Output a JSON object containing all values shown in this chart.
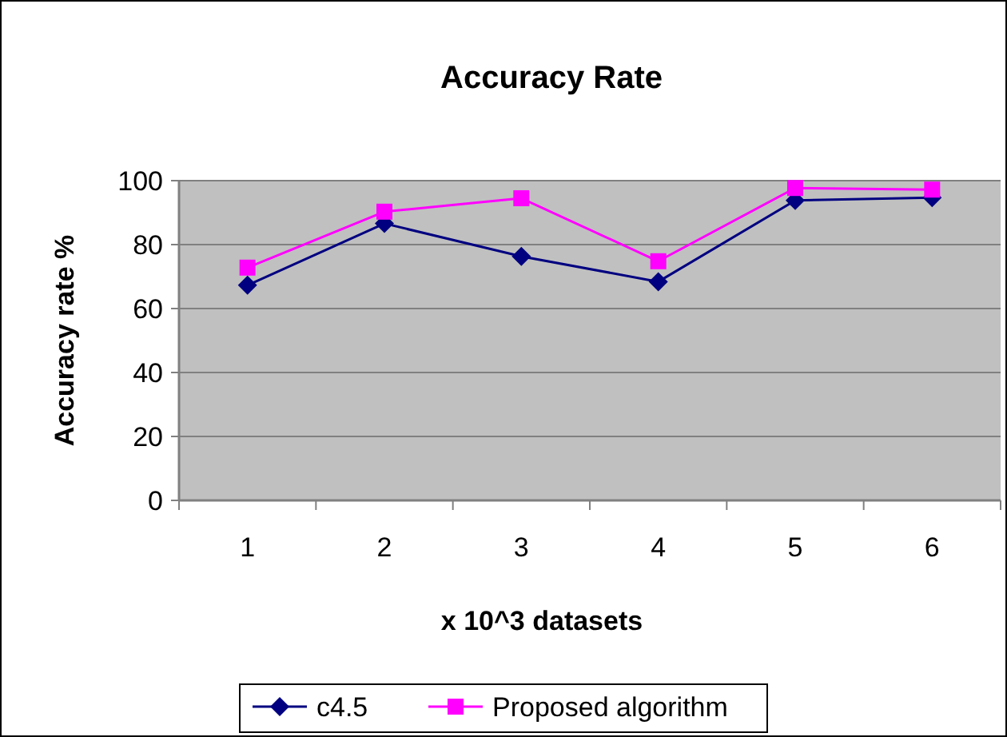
{
  "chart_data": {
    "type": "line",
    "title": "Accuracy Rate",
    "xlabel": "x 10^3 datasets",
    "ylabel": "Accuracy rate %",
    "categories": [
      "1",
      "2",
      "3",
      "4",
      "5",
      "6"
    ],
    "series": [
      {
        "name": "c4.5",
        "color": "#000080",
        "values": [
          67.3,
          86.6,
          76.3,
          68.4,
          93.8,
          94.7
        ],
        "marker": "diamond"
      },
      {
        "name": "Proposed algorithm",
        "color": "#ff00ff",
        "values": [
          72.8,
          90.3,
          94.5,
          74.8,
          97.7,
          97.2
        ],
        "marker": "square"
      }
    ],
    "ylim": [
      0,
      100
    ],
    "yticks": [
      0,
      20,
      40,
      60,
      80,
      100
    ],
    "grid": "y",
    "legend": "bottom"
  }
}
